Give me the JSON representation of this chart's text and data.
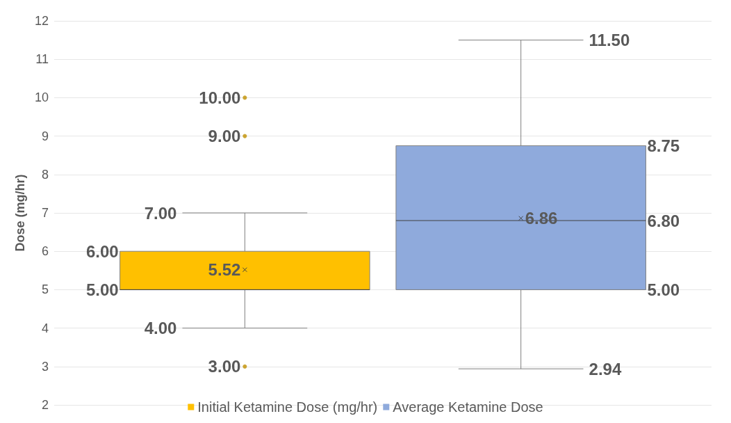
{
  "chart_data": {
    "type": "box",
    "ylabel": "Dose (mg/hr)",
    "categories": [
      null
    ],
    "series": [
      {
        "name": "Initial Ketamine Dose (mg/hr)",
        "color": "#ffc000",
        "boxes": [
          {
            "low": 4,
            "q1": 5,
            "median": 5,
            "q3": 6,
            "high": 7,
            "mean": 5.52,
            "outliers": [
              3,
              9,
              10
            ]
          }
        ]
      },
      {
        "name": "Average Ketamine Dose",
        "color": "#8faadc",
        "boxes": [
          {
            "low": 2.94,
            "q1": 5,
            "median": 6.8,
            "q3": 8.75,
            "high": 11.5,
            "mean": 6.86
          }
        ]
      }
    ],
    "annotations": [
      "7.00",
      "6.00",
      "5.00",
      "5.52",
      "4.00",
      "3.00",
      "9.00",
      "10.00",
      "11.50",
      "8.75",
      "6.80",
      "6.86",
      "5.00",
      "2.94"
    ],
    "ylim": [
      2,
      12
    ],
    "yticks": [
      2,
      3,
      4,
      5,
      6,
      7,
      8,
      9,
      10,
      11,
      12
    ],
    "grid": "y",
    "legend": "bottom",
    "marker": "cross"
  }
}
